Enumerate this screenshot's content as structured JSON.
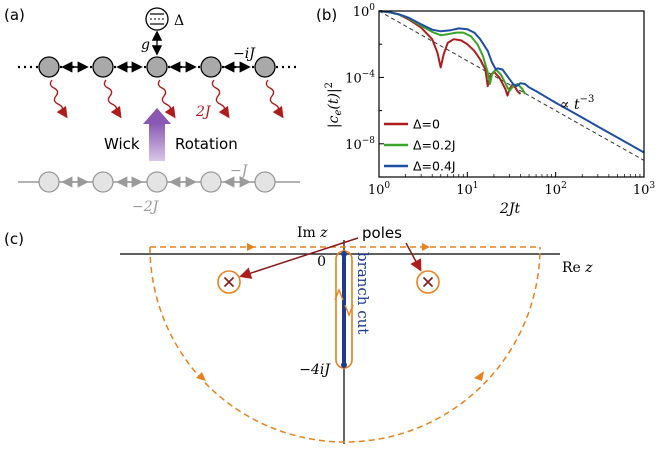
{
  "panel_a": {
    "label": "(a)",
    "delta": "Δ",
    "g": "g",
    "coupling_top": "−iJ",
    "decay": "2J",
    "wick": "Wick",
    "rotation": "Rotation",
    "coupling_bottom": "−J",
    "onsite_bottom": "−2J",
    "colors": {
      "decay": "#b01c1c",
      "wick": "#7b3fa0",
      "bottom": "#9a9a9a"
    }
  },
  "panel_b": {
    "label": "(b)"
  },
  "panel_c": {
    "label": "(c)",
    "im_label": "Im z",
    "re_label": "Re z",
    "poles_label": "poles",
    "branch_cut_label": "branch cut",
    "origin_label": "0",
    "bottom_label": "−4iJ",
    "colors": {
      "contour": "#e8821e",
      "poles": "#8b1a1a",
      "branch": "#1f3a93"
    }
  },
  "chart_data": {
    "type": "line",
    "title": "",
    "xlabel": "2Jt",
    "ylabel": "|c_e(t)|^2",
    "xscale": "log",
    "yscale": "log",
    "xlim": [
      1,
      1000
    ],
    "ylim": [
      1e-10,
      1
    ],
    "x_ticks": [
      "10^0",
      "10^1",
      "10^2",
      "10^3"
    ],
    "y_ticks": [
      "10^0",
      "10^-4",
      "10^-8"
    ],
    "annotation": "∝ t^-3",
    "legend_position": "lower-left",
    "series": [
      {
        "name": "Δ=0",
        "color": "#b01c1c",
        "points": [
          [
            1,
            1
          ],
          [
            1.3,
            0.85
          ],
          [
            1.7,
            0.6
          ],
          [
            2.2,
            0.3
          ],
          [
            3,
            0.1
          ],
          [
            4,
            0.02
          ],
          [
            4.6,
            0.003
          ],
          [
            5,
            0.0004
          ],
          [
            5.4,
            0.0025
          ],
          [
            6,
            0.012
          ],
          [
            7,
            0.02
          ],
          [
            8.5,
            0.017
          ],
          [
            10,
            0.01
          ],
          [
            12,
            0.004
          ],
          [
            14,
            0.0012
          ],
          [
            16,
            0.0003
          ],
          [
            17,
            3e-05
          ],
          [
            18,
            0.00012
          ],
          [
            20,
            0.00022
          ],
          [
            23,
            0.0001
          ],
          [
            27,
            2e-05
          ],
          [
            28.5,
            8e-06
          ],
          [
            30,
            2e-05
          ],
          [
            33,
            4e-05
          ],
          [
            37,
            1.5e-05
          ],
          [
            40,
            1e-05
          ]
        ]
      },
      {
        "name": "Δ=0.2J",
        "color": "#3aa52a",
        "points": [
          [
            1,
            1
          ],
          [
            1.3,
            0.85
          ],
          [
            1.7,
            0.6
          ],
          [
            2.2,
            0.35
          ],
          [
            3,
            0.13
          ],
          [
            4,
            0.055
          ],
          [
            5,
            0.035
          ],
          [
            6,
            0.04
          ],
          [
            7.5,
            0.05
          ],
          [
            9,
            0.05
          ],
          [
            11,
            0.03
          ],
          [
            13,
            0.01
          ],
          [
            15,
            0.002
          ],
          [
            17,
            0.0002
          ],
          [
            18,
            4e-05
          ],
          [
            19,
            0.00015
          ],
          [
            21,
            0.0003
          ],
          [
            24,
            0.00015
          ],
          [
            28,
            3e-05
          ],
          [
            30,
            1.5e-05
          ],
          [
            33,
            3e-05
          ],
          [
            37,
            4e-05
          ],
          [
            42,
            2e-05
          ],
          [
            45,
            1e-05
          ]
        ]
      },
      {
        "name": "Δ=0.4J",
        "color": "#1f4fa3",
        "points": [
          [
            1,
            1
          ],
          [
            1.3,
            0.86
          ],
          [
            1.7,
            0.62
          ],
          [
            2.2,
            0.38
          ],
          [
            3,
            0.16
          ],
          [
            4,
            0.075
          ],
          [
            5,
            0.06
          ],
          [
            6.5,
            0.07
          ],
          [
            8,
            0.09
          ],
          [
            10,
            0.08
          ],
          [
            12,
            0.05
          ],
          [
            14,
            0.02
          ],
          [
            17,
            0.004
          ],
          [
            19,
            0.0008
          ],
          [
            21,
            0.0003
          ],
          [
            22,
            0.00035
          ],
          [
            25,
            0.0003
          ],
          [
            29,
            0.0001
          ],
          [
            33,
            4e-05
          ],
          [
            36,
            3e-05
          ],
          [
            40,
            4.5e-05
          ],
          [
            45,
            4e-05
          ],
          [
            50,
            2.5e-05
          ],
          [
            60,
            1.5e-05
          ],
          [
            80,
            6e-06
          ],
          [
            100,
            3e-06
          ],
          [
            150,
            9e-07
          ],
          [
            200,
            3.8e-07
          ],
          [
            300,
            1.1e-07
          ],
          [
            500,
            2.4e-08
          ],
          [
            700,
            8.7e-09
          ],
          [
            1000,
            3e-09
          ]
        ]
      },
      {
        "name": "",
        "color": "#333333",
        "dashed": true,
        "points": [
          [
            1,
            1
          ],
          [
            3,
            0.037
          ],
          [
            10,
            0.001
          ],
          [
            30,
            3.7e-05
          ],
          [
            100,
            1e-06
          ],
          [
            300,
            3.7e-08
          ],
          [
            1000,
            1e-09
          ]
        ]
      }
    ]
  }
}
